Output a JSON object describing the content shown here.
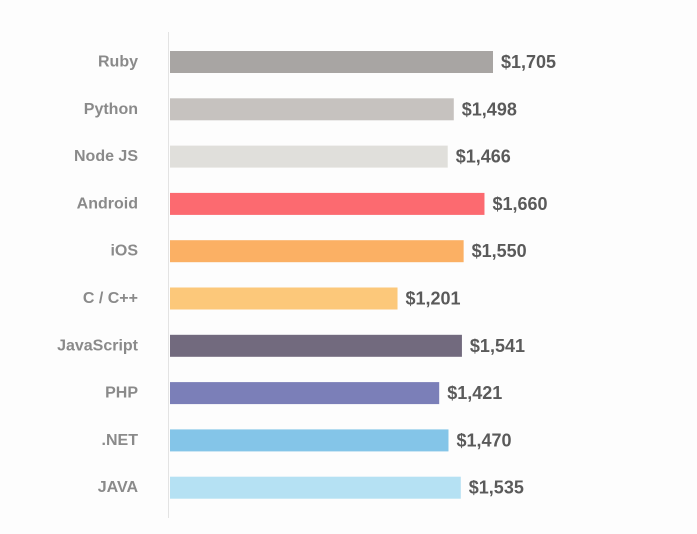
{
  "chart_data": {
    "type": "bar",
    "orientation": "horizontal",
    "categories": [
      "Ruby",
      "Python",
      "Node JS",
      "Android",
      "iOS",
      "C / C++",
      "JavaScript",
      "PHP",
      ".NET",
      "JAVA"
    ],
    "values": [
      1705,
      1498,
      1466,
      1660,
      1550,
      1201,
      1541,
      1421,
      1470,
      1535
    ],
    "value_labels": [
      "$1,705",
      "$1,498",
      "$1,466",
      "$1,660",
      "$1,550",
      "$1,201",
      "$1,541",
      "$1,421",
      "$1,470",
      "$1,535"
    ],
    "colors": [
      "#a8a5a3",
      "#c6c2bf",
      "#e0dfdb",
      "#fc6a70",
      "#fbb064",
      "#fcc87a",
      "#726a7e",
      "#7b7fb8",
      "#84c5e8",
      "#b5e1f3"
    ],
    "xlim": [
      0,
      1705
    ],
    "title": "",
    "xlabel": "",
    "ylabel": "",
    "grid": false,
    "legend": "none"
  }
}
